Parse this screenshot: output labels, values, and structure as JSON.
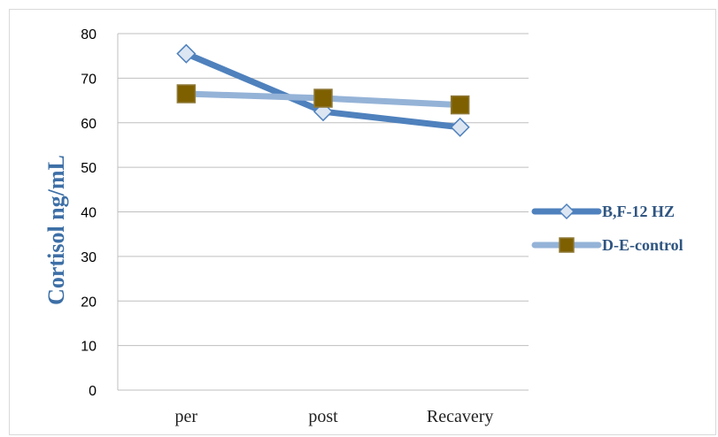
{
  "chart_data": {
    "type": "line",
    "categories": [
      "per",
      "post",
      "Recavery"
    ],
    "ylabel": "Cortisol ng/mL",
    "xlabel": "",
    "ylim": [
      0,
      80
    ],
    "yticks": [
      0,
      10,
      20,
      30,
      40,
      50,
      60,
      70,
      80
    ],
    "grid": true,
    "legend_position": "right",
    "series": [
      {
        "name": "B,F-12 HZ",
        "values": [
          75.5,
          62.5,
          59.0
        ],
        "color": "#4f81bd",
        "marker": "diamond",
        "marker_fill": "#dce6f2"
      },
      {
        "name": "D-E-control",
        "values": [
          66.5,
          65.5,
          64.0
        ],
        "color": "#95b3d7",
        "marker": "square",
        "marker_fill": "#7f6000"
      }
    ]
  }
}
